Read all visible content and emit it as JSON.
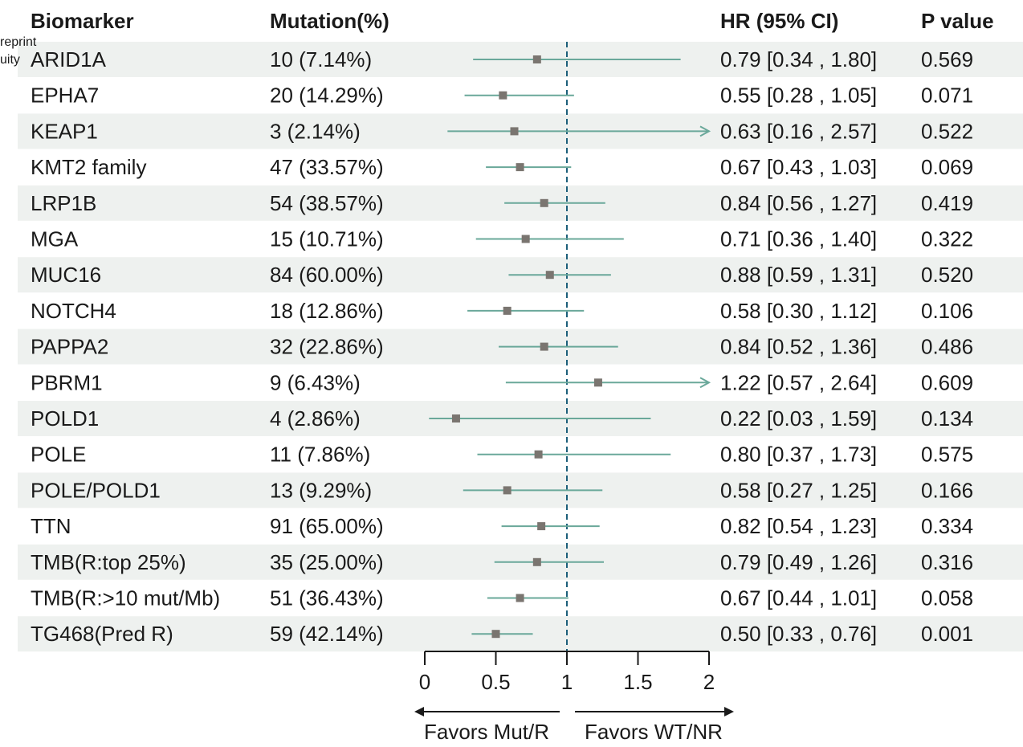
{
  "watermark": [
    "reprint",
    "uity"
  ],
  "arrows": {
    "left": "Favors Mut/R",
    "right": "Favors WT/NR"
  },
  "colors": {
    "stripe": "#eef1ef",
    "ci_line": "#6aa89a",
    "point": "#7a7570",
    "ref_line": "#1c5f7a",
    "text": "#1a1a1a"
  },
  "chart_data": {
    "type": "forest",
    "columns": [
      "Biomarker",
      "Mutation(%)",
      "HR (95% CI)",
      "P value"
    ],
    "reference_line": 1,
    "xlim": [
      0,
      2
    ],
    "xticks": [
      "0",
      "0.5",
      "1",
      "1.5",
      "2"
    ],
    "rows": [
      {
        "biomarker": "ARID1A",
        "mutation": "10 (7.14%)",
        "hr": 0.79,
        "lo": 0.34,
        "hi": 1.8,
        "hr_text": "0.79 [0.34 , 1.80]",
        "p": "0.569"
      },
      {
        "biomarker": "EPHA7",
        "mutation": "20 (14.29%)",
        "hr": 0.55,
        "lo": 0.28,
        "hi": 1.05,
        "hr_text": "0.55 [0.28 , 1.05]",
        "p": "0.071"
      },
      {
        "biomarker": "KEAP1",
        "mutation": "3 (2.14%)",
        "hr": 0.63,
        "lo": 0.16,
        "hi": 2.57,
        "hr_text": "0.63 [0.16 , 2.57]",
        "p": "0.522"
      },
      {
        "biomarker": "KMT2 family",
        "mutation": "47 (33.57%)",
        "hr": 0.67,
        "lo": 0.43,
        "hi": 1.03,
        "hr_text": "0.67 [0.43 , 1.03]",
        "p": "0.069"
      },
      {
        "biomarker": "LRP1B",
        "mutation": "54 (38.57%)",
        "hr": 0.84,
        "lo": 0.56,
        "hi": 1.27,
        "hr_text": "0.84 [0.56 , 1.27]",
        "p": "0.419"
      },
      {
        "biomarker": "MGA",
        "mutation": "15 (10.71%)",
        "hr": 0.71,
        "lo": 0.36,
        "hi": 1.4,
        "hr_text": "0.71 [0.36 , 1.40]",
        "p": "0.322"
      },
      {
        "biomarker": "MUC16",
        "mutation": "84 (60.00%)",
        "hr": 0.88,
        "lo": 0.59,
        "hi": 1.31,
        "hr_text": "0.88 [0.59 , 1.31]",
        "p": "0.520"
      },
      {
        "biomarker": "NOTCH4",
        "mutation": "18 (12.86%)",
        "hr": 0.58,
        "lo": 0.3,
        "hi": 1.12,
        "hr_text": "0.58 [0.30 , 1.12]",
        "p": "0.106"
      },
      {
        "biomarker": "PAPPA2",
        "mutation": "32 (22.86%)",
        "hr": 0.84,
        "lo": 0.52,
        "hi": 1.36,
        "hr_text": "0.84 [0.52 , 1.36]",
        "p": "0.486"
      },
      {
        "biomarker": "PBRM1",
        "mutation": "9 (6.43%)",
        "hr": 1.22,
        "lo": 0.57,
        "hi": 2.64,
        "hr_text": "1.22 [0.57 , 2.64]",
        "p": "0.609"
      },
      {
        "biomarker": "POLD1",
        "mutation": "4 (2.86%)",
        "hr": 0.22,
        "lo": 0.03,
        "hi": 1.59,
        "hr_text": "0.22 [0.03 , 1.59]",
        "p": "0.134"
      },
      {
        "biomarker": "POLE",
        "mutation": "11 (7.86%)",
        "hr": 0.8,
        "lo": 0.37,
        "hi": 1.73,
        "hr_text": "0.80 [0.37 , 1.73]",
        "p": "0.575"
      },
      {
        "biomarker": "POLE/POLD1",
        "mutation": "13 (9.29%)",
        "hr": 0.58,
        "lo": 0.27,
        "hi": 1.25,
        "hr_text": "0.58 [0.27 , 1.25]",
        "p": "0.166"
      },
      {
        "biomarker": "TTN",
        "mutation": "91 (65.00%)",
        "hr": 0.82,
        "lo": 0.54,
        "hi": 1.23,
        "hr_text": "0.82 [0.54 , 1.23]",
        "p": "0.334"
      },
      {
        "biomarker": "TMB(R:top 25%)",
        "mutation": "35 (25.00%)",
        "hr": 0.79,
        "lo": 0.49,
        "hi": 1.26,
        "hr_text": "0.79 [0.49 , 1.26]",
        "p": "0.316"
      },
      {
        "biomarker": "TMB(R:>10 mut/Mb)",
        "mutation": "51 (36.43%)",
        "hr": 0.67,
        "lo": 0.44,
        "hi": 1.01,
        "hr_text": "0.67 [0.44 , 1.01]",
        "p": "0.058"
      },
      {
        "biomarker": "TG468(Pred R)",
        "mutation": "59 (42.14%)",
        "hr": 0.5,
        "lo": 0.33,
        "hi": 0.76,
        "hr_text": "0.50 [0.33 , 0.76]",
        "p": "0.001"
      }
    ]
  }
}
